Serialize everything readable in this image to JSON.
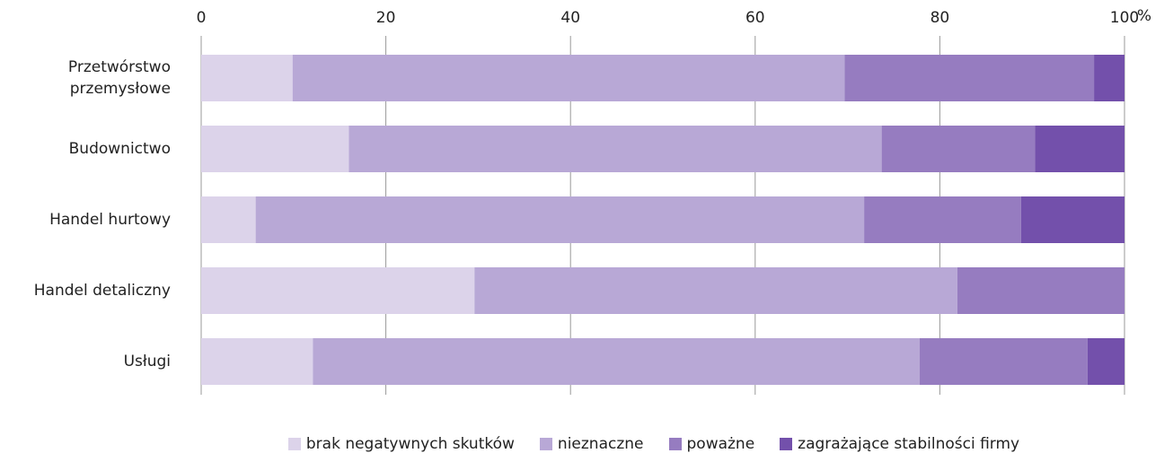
{
  "chart_data": {
    "type": "stacked_barh",
    "categories": [
      "Przetwórstwo przemysłowe",
      "Budownictwo",
      "Handel hurtowy",
      "Handel detaliczny",
      "Usługi"
    ],
    "series": [
      {
        "name": "brak negatywnych skutków",
        "color": "#dcd3ea",
        "values": [
          9.9,
          16.0,
          5.9,
          29.6,
          12.1
        ]
      },
      {
        "name": "nieznaczne",
        "color": "#b8a8d6",
        "values": [
          59.8,
          57.7,
          65.9,
          52.3,
          65.7
        ]
      },
      {
        "name": "poważne",
        "color": "#967cc0",
        "values": [
          27.0,
          16.6,
          17.0,
          18.1,
          18.2
        ]
      },
      {
        "name": "zagrażające stabilności firmy",
        "color": "#7350ab",
        "values": [
          3.3,
          9.7,
          11.2,
          0,
          4.0
        ]
      }
    ],
    "x_axis_label": "%",
    "xlim": [
      0,
      100
    ],
    "xticks": [
      0,
      20,
      40,
      60,
      80,
      100
    ],
    "grid": true,
    "legend": "bottom"
  }
}
